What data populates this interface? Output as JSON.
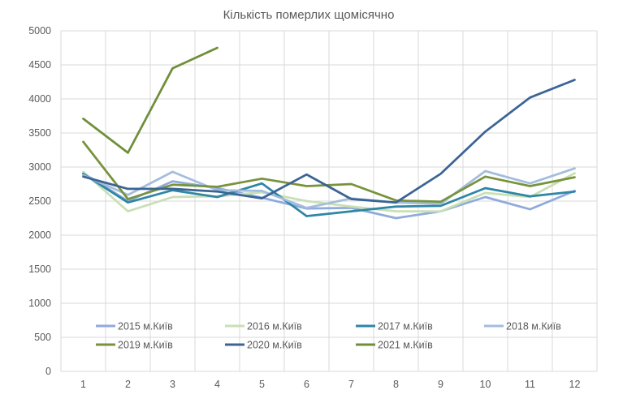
{
  "chart_data": {
    "type": "line",
    "title": "Кількість померлих щомісячно",
    "xlabel": "",
    "ylabel": "",
    "categories": [
      "1",
      "2",
      "3",
      "4",
      "5",
      "6",
      "7",
      "8",
      "9",
      "10",
      "11",
      "12"
    ],
    "ylim": [
      0,
      5000
    ],
    "yticks": [
      0,
      500,
      1000,
      1500,
      2000,
      2500,
      3000,
      3500,
      4000,
      4500,
      5000
    ],
    "grid": true,
    "legend_position": "bottom-inside",
    "series": [
      {
        "name": "2015 м.Київ",
        "color": "#8faadc",
        "values": [
          2910,
          2500,
          2790,
          2690,
          2550,
          2390,
          2400,
          2250,
          2350,
          2560,
          2380,
          2650
        ]
      },
      {
        "name": "2016 м.Київ",
        "color": "#c9dfb4",
        "values": [
          2930,
          2350,
          2560,
          2570,
          2630,
          2500,
          2420,
          2350,
          2350,
          2620,
          2560,
          2910
        ]
      },
      {
        "name": "2017 м.Київ",
        "color": "#2e86a6",
        "values": [
          2900,
          2480,
          2660,
          2560,
          2760,
          2280,
          2350,
          2420,
          2430,
          2690,
          2570,
          2640
        ]
      },
      {
        "name": "2018 м.Київ",
        "color": "#a3bddc",
        "values": [
          2880,
          2590,
          2930,
          2660,
          2650,
          2400,
          2540,
          2480,
          2460,
          2940,
          2760,
          2980
        ]
      },
      {
        "name": "2019 м.Київ",
        "color": "#77933c",
        "values": [
          3370,
          2530,
          2740,
          2710,
          2830,
          2720,
          2750,
          2510,
          2490,
          2860,
          2720,
          2850
        ]
      },
      {
        "name": "2020 м.Київ",
        "color": "#3b6495",
        "values": [
          2860,
          2680,
          2680,
          2640,
          2540,
          2890,
          2530,
          2480,
          2900,
          3520,
          4020,
          4280
        ]
      },
      {
        "name": "2021 м.Київ",
        "color": "#6f8f3a",
        "values": [
          3710,
          3210,
          4450,
          4750,
          null,
          null,
          null,
          null,
          null,
          null,
          null,
          null
        ]
      }
    ]
  }
}
